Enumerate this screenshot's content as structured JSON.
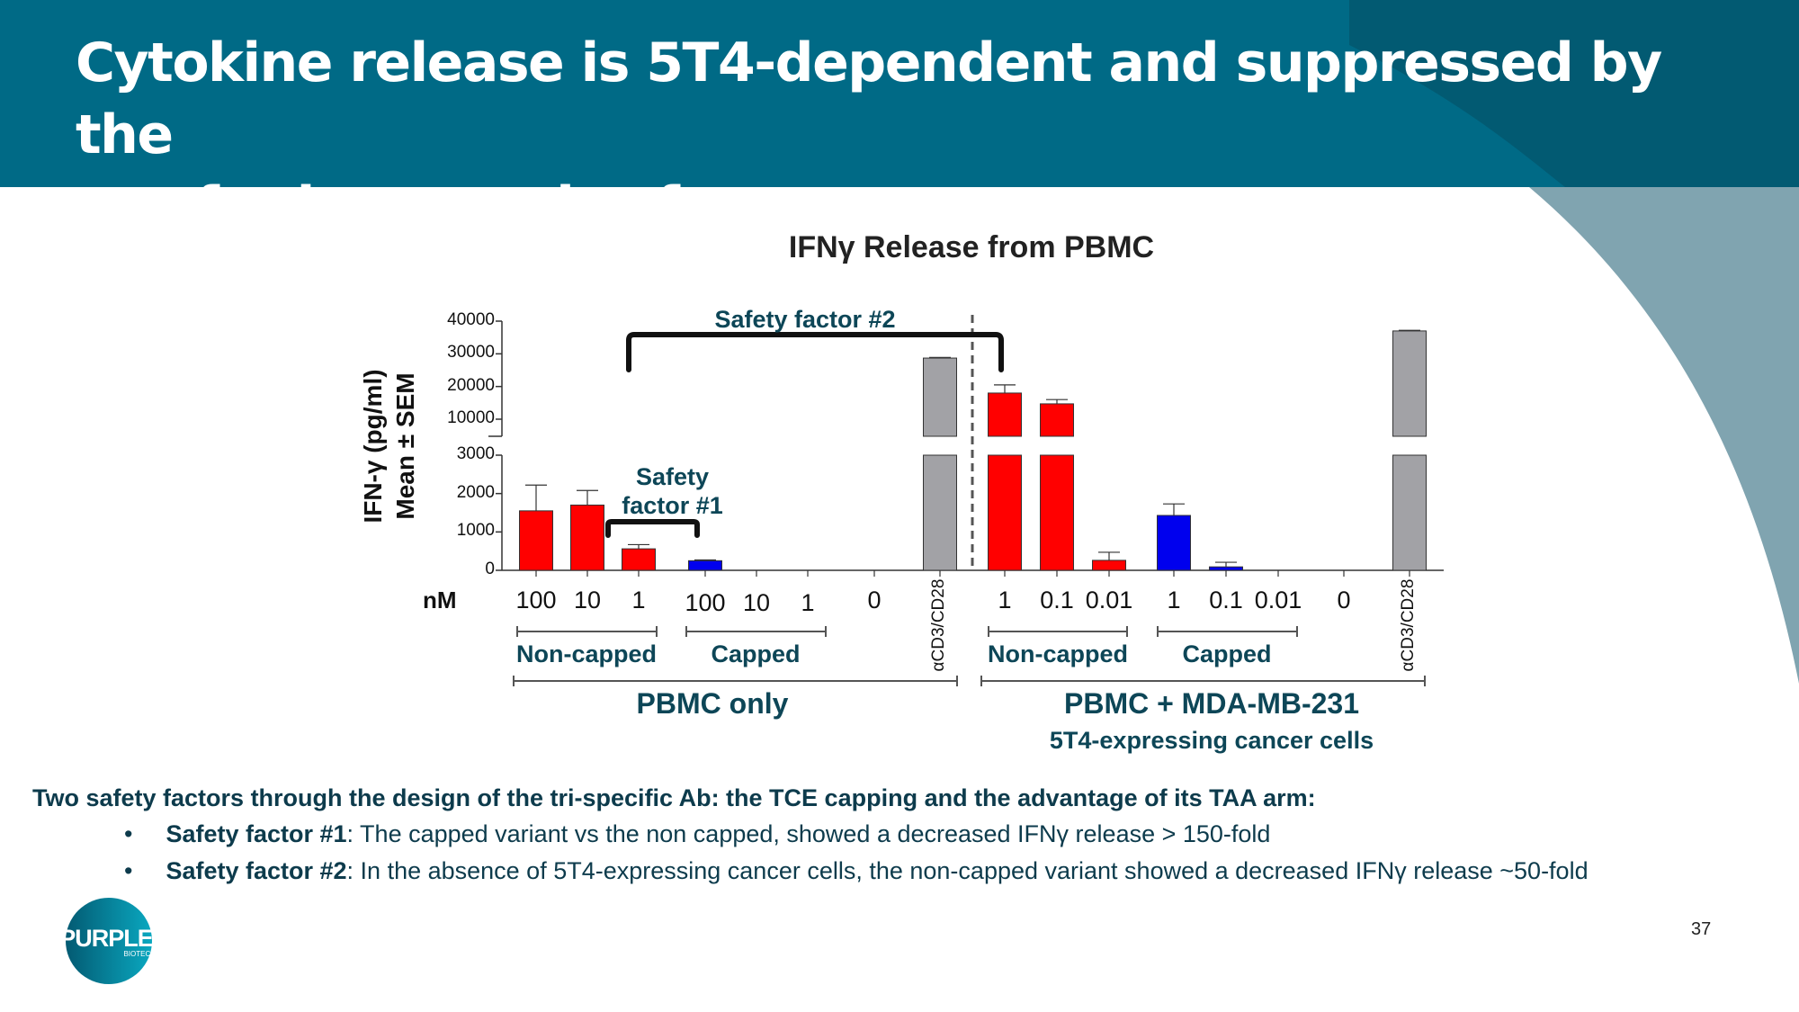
{
  "header": {
    "title_line1": "Cytokine release is 5T4-dependent and suppressed by the",
    "title_line2": "cap for improved safety"
  },
  "colors": {
    "header_dark": "#025a72",
    "header_light": "#006a86",
    "arc": "#80a4b0",
    "noncapped": "#ff0000",
    "capped": "#0000ee",
    "control": "#a2a2a6",
    "teal_text": "#0d4657"
  },
  "chart_data": {
    "type": "bar",
    "title": "IFNγ Release from PBMC",
    "ylabel_line1": "IFN-γ (pg/ml)",
    "ylabel_line2": "Mean ± SEM",
    "xunit": "nM",
    "y_ticks_lower": [
      "0",
      "1000",
      "2000",
      "3000"
    ],
    "y_ticks_upper": [
      "10000",
      "20000",
      "30000",
      "40000"
    ],
    "ylim_lower": [
      0,
      3000
    ],
    "ylim_upper": [
      4770,
      40000
    ],
    "axis_break": true,
    "categories": [
      "100",
      "10",
      "1",
      "100",
      "10",
      "1",
      "0",
      "αCD3/CD28",
      "1",
      "0.1",
      "0.01",
      "1",
      "0.1",
      "0.01",
      "0",
      "αCD3/CD28"
    ],
    "series_type": [
      "noncapped",
      "noncapped",
      "noncapped",
      "capped",
      "capped",
      "capped",
      "capped",
      "control",
      "noncapped",
      "noncapped",
      "noncapped",
      "capped",
      "capped",
      "capped",
      "capped",
      "control"
    ],
    "values": [
      1550,
      1700,
      560,
      250,
      0,
      0,
      0,
      28700,
      18000,
      14700,
      260,
      1430,
      90,
      0,
      0,
      37000
    ],
    "errors": [
      670,
      380,
      110,
      20,
      0,
      0,
      0,
      200,
      2500,
      1300,
      210,
      300,
      120,
      0,
      0,
      200
    ],
    "groups": [
      {
        "label": "Non-capped"
      },
      {
        "label": "Capped"
      },
      {
        "label": "Non-capped"
      },
      {
        "label": "Capped"
      }
    ],
    "conditions": [
      {
        "label": "PBMC only"
      },
      {
        "label": "PBMC + MDA-MB-231",
        "sublabel": "5T4-expressing cancer cells"
      }
    ],
    "annotations": {
      "safety1_line1": "Safety",
      "safety1_line2": "factor #1",
      "safety2": "Safety factor #2"
    }
  },
  "body": {
    "intro": "Two safety factors through the design of the tri-specific Ab: the TCE capping and the advantage of its TAA arm:",
    "bullets": [
      {
        "bold": "Safety factor #1",
        "text": ": The capped variant vs the non capped, showed a decreased IFNγ release > 150-fold"
      },
      {
        "bold": "Safety factor #2",
        "text": ": In the absence of 5T4-expressing cancer cells, the non-capped variant showed a decreased IFNγ release ~50-fold"
      }
    ],
    "bullet_char": "•"
  },
  "footer": {
    "page_number": "37",
    "logo_text": "PURPLE",
    "logo_sub": "BIOTECH"
  }
}
